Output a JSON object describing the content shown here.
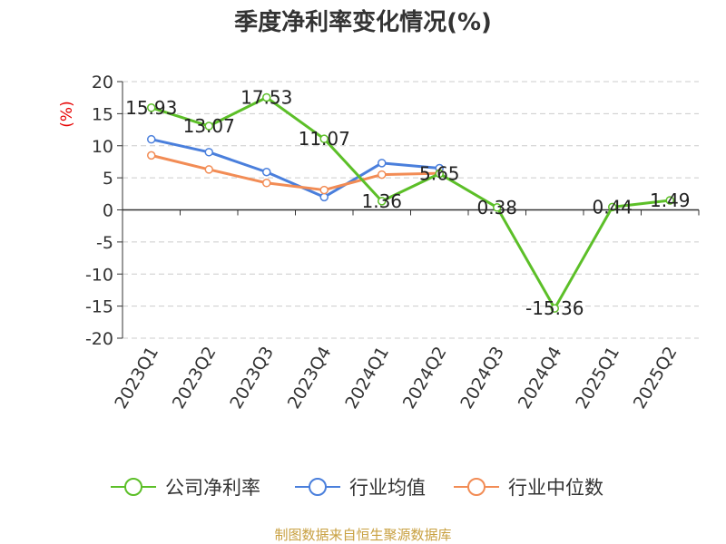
{
  "chart_data": {
    "type": "line",
    "title": "季度净利率变化情况(%)",
    "ylabel": "(%)",
    "xlabel": "",
    "categories": [
      "2023Q1",
      "2023Q2",
      "2023Q3",
      "2023Q4",
      "2024Q1",
      "2024Q2",
      "2024Q3",
      "2024Q4",
      "2025Q1",
      "2025Q2"
    ],
    "ylim": [
      -20,
      20
    ],
    "yticks": [
      "20",
      "15",
      "10",
      "5",
      "0",
      "-5",
      "-10",
      "-15",
      "-20"
    ],
    "grid": true,
    "legend_position": "bottom",
    "series": [
      {
        "name": "公司净利率",
        "color": "#5cbf28",
        "values": [
          15.93,
          13.07,
          17.53,
          11.07,
          1.36,
          5.65,
          0.38,
          -15.36,
          0.44,
          1.49
        ],
        "labels": [
          "15.93",
          "13.07",
          "17.53",
          "11.07",
          "1.36",
          "5.65",
          "0.38",
          "-15.36",
          "0.44",
          "1.49"
        ]
      },
      {
        "name": "行业均值",
        "color": "#4a7fdc",
        "values": [
          11.0,
          9.0,
          5.9,
          2.0,
          7.3,
          6.5,
          null,
          null,
          null,
          null
        ]
      },
      {
        "name": "行业中位数",
        "color": "#f28c55",
        "values": [
          8.5,
          6.3,
          4.2,
          3.1,
          5.5,
          5.7,
          null,
          null,
          null,
          null
        ]
      }
    ]
  },
  "footer": {
    "source": "制图数据来自恒生聚源数据库"
  }
}
